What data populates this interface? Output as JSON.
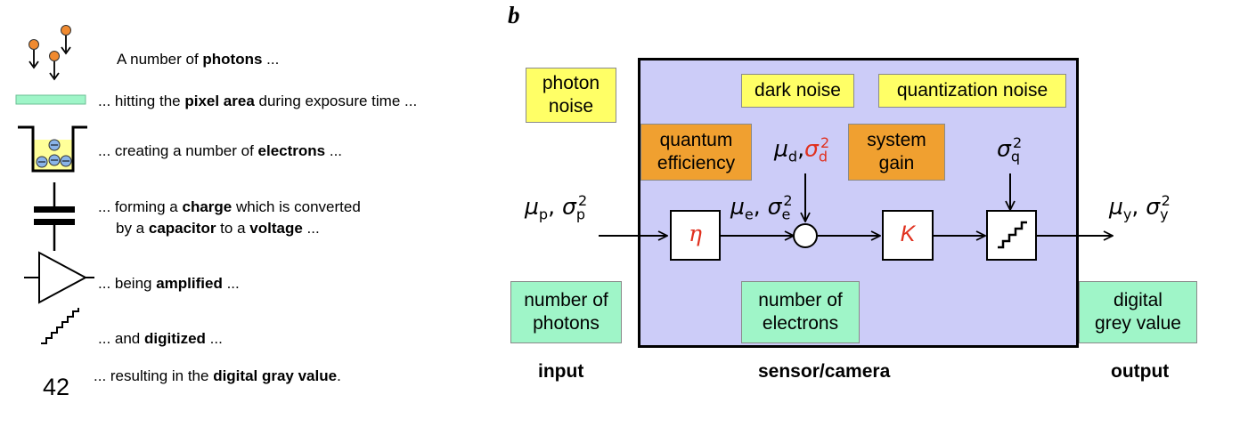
{
  "panel_label": "b",
  "left_steps": [
    {
      "pre": "A number of ",
      "bold": "photons",
      "post": " ..."
    },
    {
      "pre": "... hitting the ",
      "bold": "pixel area",
      "post": " during exposure time ..."
    },
    {
      "pre": "... creating a number of ",
      "bold": "electrons",
      "post": " ..."
    },
    {
      "pre": "... forming a ",
      "bold": "charge",
      "post": " which is converted"
    },
    {
      "pre": "by a ",
      "bold": "capacitor",
      "mid": " to a ",
      "bold2": "voltage",
      "post": " ..."
    },
    {
      "pre": "... being ",
      "bold": "amplified",
      "post": " ..."
    },
    {
      "pre": "... and ",
      "bold": "digitized",
      "post": " ..."
    },
    {
      "pre": "... resulting in the ",
      "bold": "digital gray value",
      "post": "."
    }
  ],
  "digit_value": "42",
  "boxes": {
    "photon_noise": [
      "photon",
      "noise"
    ],
    "dark_noise": "dark noise",
    "quantization_noise": "quantization noise",
    "quantum_efficiency": [
      "quantum",
      "efficiency"
    ],
    "system_gain": [
      "system",
      "gain"
    ],
    "number_of_photons": [
      "number of",
      "photons"
    ],
    "number_of_electrons": [
      "number of",
      "electrons"
    ],
    "digital_grey_value": [
      "digital",
      "grey value"
    ]
  },
  "blocks": {
    "eta": "η",
    "k": "K"
  },
  "symbols": {
    "mu": "μ",
    "sigma": "σ",
    "p": "p",
    "e": "e",
    "d": "d",
    "q": "q",
    "y": "y",
    "two": "2",
    "comma": ","
  },
  "bottom_labels": {
    "input": "input",
    "sensor": "sensor/camera",
    "output": "output"
  },
  "colors": {
    "panel_bg": "#ccccf8",
    "red": "#e0301e",
    "yellow": "#ffff66",
    "orange": "#f0a030",
    "green": "#9ff5c8",
    "electron": "#8ab4e8",
    "photon": "#f08a30"
  }
}
